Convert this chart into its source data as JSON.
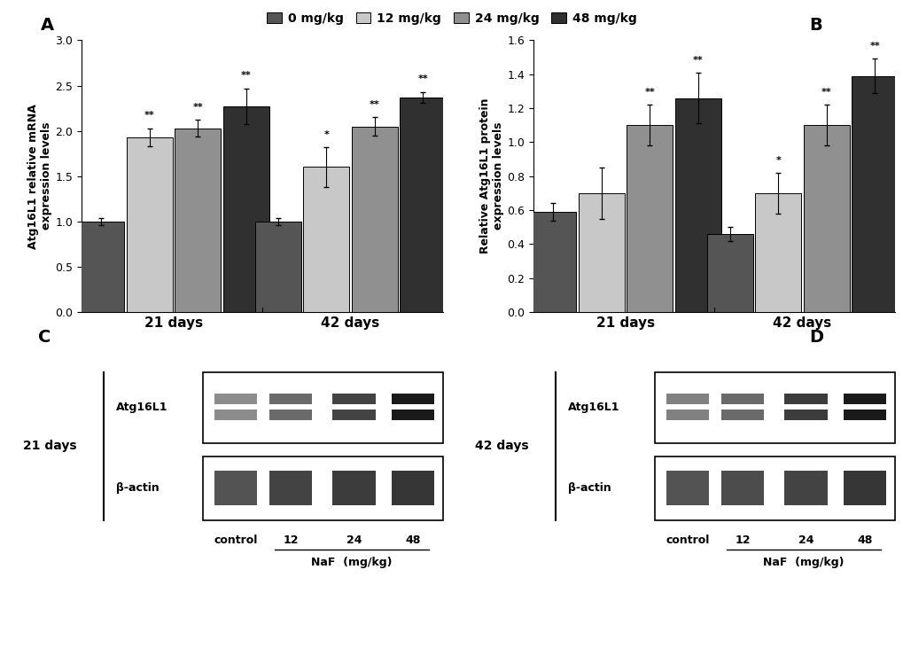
{
  "legend_labels": [
    "0 mg/kg",
    "12 mg/kg",
    "24 mg/kg",
    "48 mg/kg"
  ],
  "legend_colors": [
    "#555555",
    "#c8c8c8",
    "#909090",
    "#303030"
  ],
  "panel_A": {
    "groups": [
      "21 days",
      "42 days"
    ],
    "values": [
      [
        1.0,
        1.93,
        2.03,
        2.27
      ],
      [
        1.0,
        1.6,
        2.05,
        2.37
      ]
    ],
    "errors": [
      [
        0.04,
        0.1,
        0.09,
        0.2
      ],
      [
        0.04,
        0.22,
        0.1,
        0.06
      ]
    ],
    "sig": [
      [
        "",
        "**",
        "**",
        "**"
      ],
      [
        "",
        "*",
        "**",
        "**"
      ]
    ],
    "ylabel": "Atg16L1 relative mRNA\nexpression levels",
    "ylim": [
      0,
      3.0
    ],
    "yticks": [
      0,
      0.5,
      1.0,
      1.5,
      2.0,
      2.5,
      3.0
    ],
    "label": "A"
  },
  "panel_B": {
    "groups": [
      "21 days",
      "42 days"
    ],
    "values": [
      [
        0.59,
        0.7,
        1.1,
        1.26
      ],
      [
        0.46,
        0.7,
        1.1,
        1.39
      ]
    ],
    "errors": [
      [
        0.05,
        0.15,
        0.12,
        0.15
      ],
      [
        0.04,
        0.12,
        0.12,
        0.1
      ]
    ],
    "sig": [
      [
        "",
        "",
        "**",
        "**"
      ],
      [
        "",
        "*",
        "**",
        "**"
      ]
    ],
    "ylabel": "Relative Atg16L1 protein\nexpression levels",
    "ylim": [
      0,
      1.6
    ],
    "yticks": [
      0,
      0.2,
      0.4,
      0.6,
      0.8,
      1.0,
      1.2,
      1.4,
      1.6
    ],
    "label": "B"
  },
  "bar_colors": [
    "#555555",
    "#c8c8c8",
    "#909090",
    "#303030"
  ],
  "bar_width": 0.12,
  "background_color": "#ffffff"
}
